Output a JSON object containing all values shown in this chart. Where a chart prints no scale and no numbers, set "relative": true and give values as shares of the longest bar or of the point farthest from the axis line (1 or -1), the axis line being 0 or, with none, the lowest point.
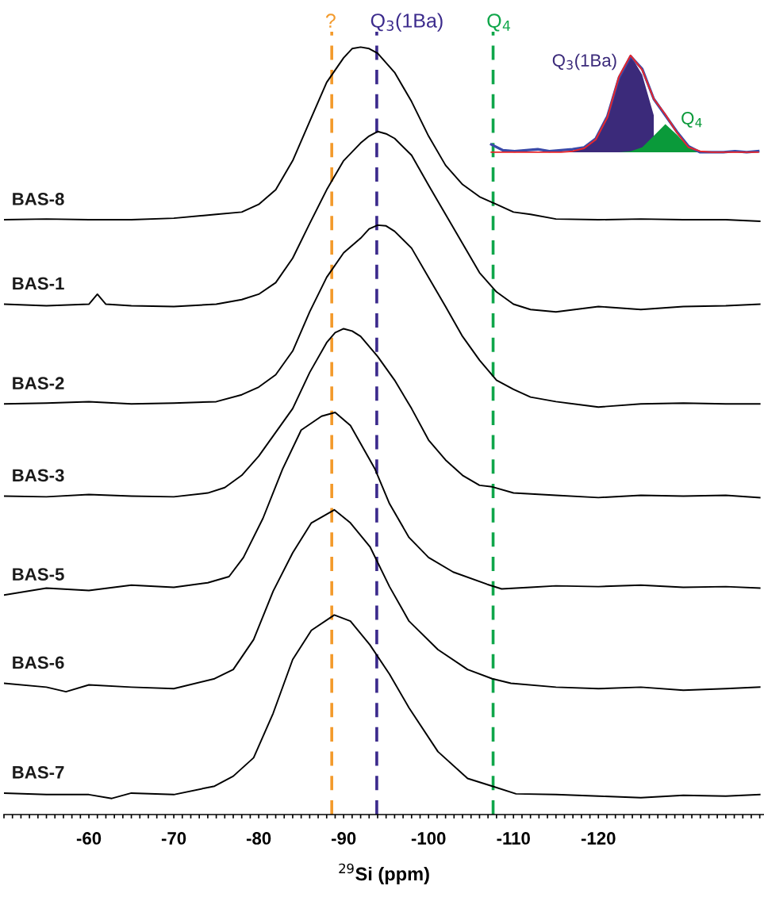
{
  "chart_data": [
    {
      "type": "line",
      "relative": true,
      "xlabel": "$^{29}$Si (ppm)",
      "xlim": [
        -50,
        -139.5
      ],
      "xticks": [
        {
          "value": -50,
          "label": null
        },
        {
          "value": -51,
          "label": null
        },
        {
          "value": -52,
          "label": null
        },
        {
          "value": -53,
          "label": null
        },
        {
          "value": -54,
          "label": null
        },
        {
          "value": -55,
          "label": null
        },
        {
          "value": -56,
          "label": null
        },
        {
          "value": -57,
          "label": null
        },
        {
          "value": -58,
          "label": null
        },
        {
          "value": -59,
          "label": null
        },
        -60,
        {
          "value": -61,
          "label": null
        },
        {
          "value": -62,
          "label": null
        },
        {
          "value": -63,
          "label": null
        },
        {
          "value": -64,
          "label": null
        },
        {
          "value": -65,
          "label": null
        },
        {
          "value": -66,
          "label": null
        },
        {
          "value": -67,
          "label": null
        },
        {
          "value": -68,
          "label": null
        },
        {
          "value": -69,
          "label": null
        },
        -70,
        {
          "value": -71,
          "label": null
        },
        {
          "value": -72,
          "label": null
        },
        {
          "value": -73,
          "label": null
        },
        {
          "value": -74,
          "label": null
        },
        {
          "value": -75,
          "label": null
        },
        {
          "value": -76,
          "label": null
        },
        {
          "value": -77,
          "label": null
        },
        {
          "value": -78,
          "label": null
        },
        {
          "value": -79,
          "label": null
        },
        -80,
        {
          "value": -81,
          "label": null
        },
        {
          "value": -82,
          "label": null
        },
        {
          "value": -83,
          "label": null
        },
        {
          "value": -84,
          "label": null
        },
        {
          "value": -85,
          "label": null
        },
        {
          "value": -86,
          "label": null
        },
        {
          "value": -87,
          "label": null
        },
        {
          "value": -88,
          "label": null
        },
        {
          "value": -89,
          "label": null
        },
        -90,
        {
          "value": -91,
          "label": null
        },
        {
          "value": -92,
          "label": null
        },
        {
          "value": -93,
          "label": null
        },
        {
          "value": -94,
          "label": null
        },
        {
          "value": -95,
          "label": null
        },
        {
          "value": -96,
          "label": null
        },
        {
          "value": -97,
          "label": null
        },
        {
          "value": -98,
          "label": null
        },
        {
          "value": -99,
          "label": null
        },
        -100,
        {
          "value": -101,
          "label": null
        },
        {
          "value": -102,
          "label": null
        },
        {
          "value": -103,
          "label": null
        },
        {
          "value": -104,
          "label": null
        },
        {
          "value": -105,
          "label": null
        },
        {
          "value": -106,
          "label": null
        },
        {
          "value": -107,
          "label": null
        },
        {
          "value": -108,
          "label": null
        },
        {
          "value": -109,
          "label": null
        },
        -110,
        {
          "value": -111,
          "label": null
        },
        {
          "value": -112,
          "label": null
        },
        {
          "value": -113,
          "label": null
        },
        {
          "value": -114,
          "label": null
        },
        {
          "value": -115,
          "label": null
        },
        {
          "value": -116,
          "label": null
        },
        {
          "value": -117,
          "label": null
        },
        {
          "value": -118,
          "label": null
        },
        {
          "value": -119,
          "label": null
        },
        -120,
        {
          "value": -121,
          "label": null
        },
        {
          "value": -122,
          "label": null
        },
        {
          "value": -123,
          "label": null
        },
        {
          "value": -124,
          "label": null
        },
        {
          "value": -125,
          "label": null
        },
        {
          "value": -126,
          "label": null
        },
        {
          "value": -127,
          "label": null
        },
        {
          "value": -128,
          "label": null
        },
        {
          "value": -129,
          "label": null
        },
        {
          "value": -130,
          "label": null
        },
        {
          "value": -131,
          "label": null
        },
        {
          "value": -132,
          "label": null
        },
        {
          "value": -133,
          "label": null
        },
        {
          "value": -134,
          "label": null
        },
        {
          "value": -135,
          "label": null
        },
        {
          "value": -136,
          "label": null
        },
        {
          "value": -137,
          "label": null
        },
        {
          "value": -138,
          "label": null
        },
        {
          "value": -139,
          "label": null
        }
      ],
      "tick_labels": "x",
      "ref_lines": [
        {
          "axis": "x",
          "value": -88.6,
          "label": "?",
          "color": "#f39a2b",
          "line_style": "dashed"
        },
        {
          "axis": "x",
          "value": -93.9,
          "label": "Q$_{3}$(1Ba)",
          "color": "#3b2a8c",
          "line_style": "dashed"
        },
        {
          "axis": "x",
          "value": -107.6,
          "label": "Q$_{4}$",
          "color": "#0fa64a",
          "line_style": "dashed"
        }
      ],
      "series": [
        {
          "name": "BAS-8",
          "color": "#000000",
          "x": [
            -50,
            -55,
            -60,
            -65,
            -70,
            -75,
            -78,
            -80,
            -82,
            -84,
            -86,
            -88,
            -90,
            -91,
            -92,
            -93,
            -94,
            -96,
            -98,
            -100,
            -102,
            -104,
            -106,
            -108,
            -110,
            -112,
            -115,
            -120,
            -125,
            -130,
            -135,
            -139
          ],
          "values": [
            0.775,
            0.776,
            0.775,
            0.775,
            0.777,
            0.782,
            0.785,
            0.795,
            0.814,
            0.852,
            0.903,
            0.954,
            0.986,
            0.998,
            1.0,
            0.998,
            0.992,
            0.967,
            0.929,
            0.884,
            0.846,
            0.821,
            0.805,
            0.795,
            0.785,
            0.782,
            0.776,
            0.775,
            0.776,
            0.775,
            0.775,
            0.773
          ]
        },
        {
          "name": "BAS-1",
          "color": "#000000",
          "x": [
            -50,
            -55,
            -60,
            -61,
            -62,
            -65,
            -70,
            -75,
            -78,
            -80,
            -82,
            -84,
            -86,
            -88,
            -90,
            -92,
            -93,
            -94,
            -95,
            -96,
            -98,
            -100,
            -102,
            -104,
            -106,
            -108,
            -110,
            -112,
            -115,
            -120,
            -125,
            -130,
            -135,
            -139
          ],
          "values": [
            0.665,
            0.663,
            0.665,
            0.678,
            0.665,
            0.663,
            0.662,
            0.665,
            0.671,
            0.678,
            0.693,
            0.725,
            0.77,
            0.814,
            0.852,
            0.875,
            0.884,
            0.89,
            0.887,
            0.881,
            0.859,
            0.82,
            0.782,
            0.744,
            0.706,
            0.681,
            0.665,
            0.658,
            0.655,
            0.662,
            0.658,
            0.662,
            0.663,
            0.665
          ]
        },
        {
          "name": "BAS-2",
          "color": "#000000",
          "x": [
            -50,
            -55,
            -60,
            -65,
            -70,
            -75,
            -78,
            -80,
            -82,
            -84,
            -86,
            -88,
            -90,
            -92,
            -93,
            -94,
            -95,
            -96,
            -98,
            -100,
            -102,
            -104,
            -106,
            -108,
            -110,
            -112,
            -115,
            -120,
            -125,
            -130,
            -135,
            -139
          ],
          "values": [
            0.535,
            0.536,
            0.538,
            0.535,
            0.536,
            0.538,
            0.547,
            0.557,
            0.573,
            0.604,
            0.655,
            0.7,
            0.732,
            0.751,
            0.763,
            0.768,
            0.767,
            0.76,
            0.738,
            0.7,
            0.662,
            0.623,
            0.592,
            0.566,
            0.554,
            0.544,
            0.538,
            0.531,
            0.535,
            0.536,
            0.535,
            0.535
          ]
        },
        {
          "name": "BAS-3",
          "color": "#000000",
          "x": [
            -50,
            -55,
            -60,
            -65,
            -70,
            -74,
            -76,
            -78,
            -80,
            -82,
            -84,
            -86,
            -88,
            -89,
            -90,
            -91,
            -92,
            -94,
            -96,
            -98,
            -100,
            -102,
            -104,
            -106,
            -107.5,
            -110,
            -115,
            -120,
            -125,
            -130,
            -135,
            -139
          ],
          "values": [
            0.415,
            0.414,
            0.417,
            0.415,
            0.414,
            0.419,
            0.426,
            0.442,
            0.467,
            0.498,
            0.529,
            0.576,
            0.615,
            0.628,
            0.633,
            0.63,
            0.623,
            0.597,
            0.566,
            0.529,
            0.488,
            0.462,
            0.442,
            0.429,
            0.427,
            0.419,
            0.416,
            0.413,
            0.416,
            0.415,
            0.416,
            0.413
          ]
        },
        {
          "name": "BAS-5",
          "color": "#000000",
          "x": [
            -50,
            -55,
            -60,
            -65,
            -70,
            -74,
            -76.5,
            -78.2,
            -80.5,
            -82.8,
            -85,
            -87.4,
            -89,
            -90.8,
            -93.7,
            -95.4,
            -97.7,
            -100,
            -102.9,
            -106.9,
            -108.6,
            -112,
            -115,
            -120,
            -125,
            -130,
            -135,
            -139
          ],
          "values": [
            0.286,
            0.295,
            0.292,
            0.299,
            0.296,
            0.302,
            0.31,
            0.335,
            0.386,
            0.45,
            0.501,
            0.519,
            0.524,
            0.507,
            0.45,
            0.405,
            0.361,
            0.335,
            0.316,
            0.3,
            0.294,
            0.296,
            0.298,
            0.297,
            0.299,
            0.296,
            0.297,
            0.295
          ]
        },
        {
          "name": "BAS-6",
          "color": "#000000",
          "x": [
            -50,
            -55,
            -57.3,
            -60,
            -65,
            -70,
            -74.8,
            -77,
            -79.4,
            -81.7,
            -84,
            -86.2,
            -88.9,
            -90.8,
            -93.1,
            -95.4,
            -97.7,
            -101.1,
            -104.6,
            -107.5,
            -109.7,
            -115,
            -120,
            -125,
            -130,
            -135,
            -139
          ],
          "values": [
            0.171,
            0.166,
            0.16,
            0.169,
            0.166,
            0.164,
            0.177,
            0.189,
            0.228,
            0.291,
            0.341,
            0.38,
            0.397,
            0.38,
            0.349,
            0.297,
            0.252,
            0.215,
            0.189,
            0.177,
            0.171,
            0.166,
            0.164,
            0.166,
            0.162,
            0.164,
            0.166
          ]
        },
        {
          "name": "BAS-7",
          "color": "#000000",
          "x": [
            -50,
            -55,
            -60,
            -62.7,
            -65,
            -70,
            -74.8,
            -77,
            -79.4,
            -81.7,
            -84,
            -86.2,
            -88.9,
            -90.8,
            -93.1,
            -95.4,
            -97.7,
            -101.1,
            -104.6,
            -107.5,
            -110.3,
            -115,
            -120,
            -125,
            -130,
            -135,
            -139
          ],
          "values": [
            0.028,
            0.026,
            0.026,
            0.021,
            0.028,
            0.026,
            0.037,
            0.05,
            0.074,
            0.132,
            0.202,
            0.24,
            0.26,
            0.252,
            0.221,
            0.183,
            0.139,
            0.082,
            0.047,
            0.037,
            0.027,
            0.026,
            0.024,
            0.022,
            0.025,
            0.024,
            0.026
          ]
        }
      ]
    },
    {
      "type": "area",
      "relative": true,
      "tick_labels": false,
      "categories": [
        null,
        null,
        null,
        null,
        null,
        null,
        null,
        null,
        null,
        null,
        null,
        null,
        null,
        null,
        null,
        null,
        null,
        null,
        null,
        null,
        null,
        null,
        null,
        null
      ],
      "series": [
        {
          "name": "Q$_{3}$(1Ba)",
          "color": "#3b2a7a",
          "values": [
            0,
            0,
            0,
            0,
            0,
            0,
            0,
            0.01,
            0.04,
            0.13,
            0.36,
            0.78,
            1.0,
            0.8,
            0.38,
            null,
            null,
            null,
            null,
            null,
            null,
            null,
            null,
            null
          ]
        },
        {
          "name": "Q$_{4}$",
          "color": "#0a9a3a",
          "values": [
            0,
            0,
            0,
            0,
            0,
            0,
            0,
            0,
            0,
            0,
            0,
            0,
            0.01,
            0.05,
            0.17,
            0.29,
            0.18,
            0.05,
            0.01,
            0,
            0,
            0,
            0,
            0
          ]
        },
        {
          "type": "line",
          "color": "#3a4aa8",
          "values": [
            0.08,
            0.02,
            0.01,
            0.02,
            0.03,
            0.01,
            0.02,
            0.03,
            0.05,
            0.14,
            0.37,
            0.77,
            0.99,
            0.86,
            0.55,
            0.38,
            0.21,
            0.06,
            0.0,
            0.0,
            0.0,
            0.01,
            0.0,
            0.01
          ]
        },
        {
          "type": "line",
          "color": "#e8262a",
          "values": [
            0,
            0,
            0,
            0,
            0,
            0,
            0,
            0.01,
            0.04,
            0.13,
            0.36,
            0.78,
            1.0,
            0.85,
            0.55,
            0.39,
            0.2,
            0.05,
            0.01,
            0,
            0,
            0,
            0,
            0
          ]
        }
      ]
    }
  ]
}
